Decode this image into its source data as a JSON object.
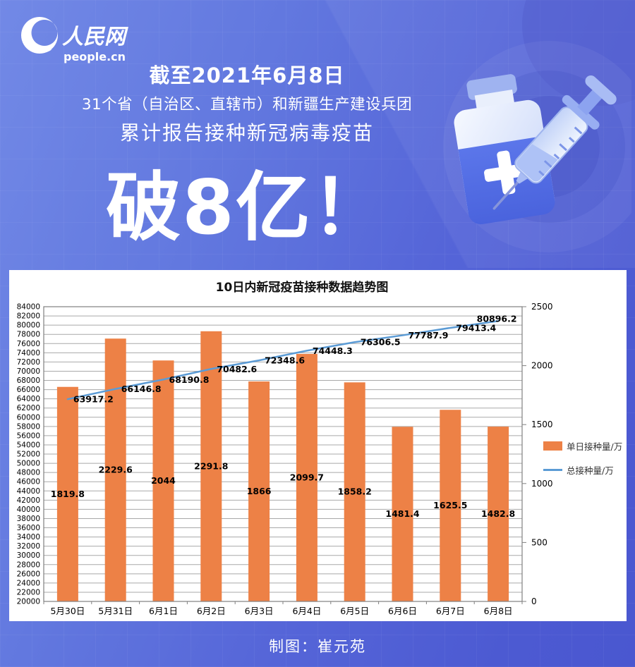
{
  "brand": {
    "logo_cn": "人民网",
    "logo_en": "people.cn"
  },
  "header": {
    "line1": "截至2021年6月8日",
    "line2": "31个省（自治区、直辖市）和新疆生产建设兵团",
    "line3": "累计报告接种新冠病毒疫苗",
    "headline": "破8亿！"
  },
  "footer": {
    "credit": "制图：崔元苑"
  },
  "colors": {
    "background_top": "#7289e6",
    "background_bottom": "#4a57d0",
    "bar": "#ED8146",
    "line": "#5B9BD5",
    "panel": "#ffffff",
    "grid": "#a9a9a9",
    "axis": "#808080",
    "label_text": "#000000"
  },
  "chart_data": {
    "type": "bar",
    "title": "10日内新冠疫苗接种数据趋势图",
    "categories": [
      "5月30日",
      "5月31日",
      "6月1日",
      "6月2日",
      "6月3日",
      "6月4日",
      "6月5日",
      "6月6日",
      "6月7日",
      "6月8日"
    ],
    "series": [
      {
        "name": "单日接种量/万",
        "type": "bar",
        "axis": "right",
        "color": "#ED8146",
        "values": [
          1819.8,
          2229.6,
          2044,
          2291.8,
          1866,
          2099.7,
          1858.2,
          1481.4,
          1625.5,
          1482.8
        ]
      },
      {
        "name": "总接种量/万",
        "type": "line",
        "axis": "left",
        "color": "#5B9BD5",
        "values": [
          63917.2,
          66146.8,
          68190.8,
          70482.6,
          72348.6,
          74448.3,
          76306.5,
          77787.9,
          79413.4,
          80896.2
        ]
      }
    ],
    "left_axis": {
      "min": 20000,
      "max": 84000,
      "step": 2000
    },
    "right_axis": {
      "min": 0,
      "max": 2500,
      "step": 500
    },
    "legend": [
      "单日接种量/万",
      "总接种量/万"
    ],
    "grid": "horizontal",
    "legend_position": "right"
  }
}
